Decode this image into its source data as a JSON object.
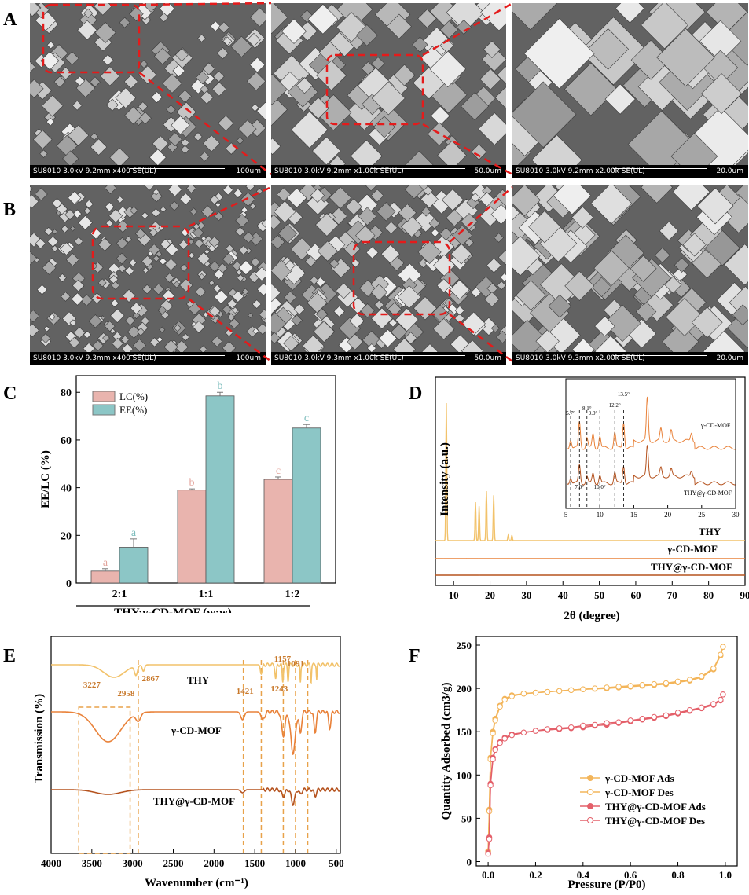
{
  "panel_labels": {
    "A": "A",
    "B": "B",
    "C": "C",
    "D": "D",
    "E": "E",
    "F": "F"
  },
  "sem": {
    "row_a": [
      {
        "meta": "SU8010 3.0kV 9.2mm x400 SE(UL)",
        "scale": "100um"
      },
      {
        "meta": "SU8010 3.0kV 9.2mm x1.00k SE(UL)",
        "scale": "50.0um"
      },
      {
        "meta": "SU8010 3.0kV 9.2mm x2.00k SE(UL)",
        "scale": "20.0um"
      }
    ],
    "row_b": [
      {
        "meta": "SU8010 3.0kV 9.3mm x400 SE(UL)",
        "scale": "100um"
      },
      {
        "meta": "SU8010 3.0kV 9.3mm x1.00k SE(UL)",
        "scale": "50.0um"
      },
      {
        "meta": "SU8010 3.0kV 9.3mm x2.00k SE(UL)",
        "scale": "20.0um"
      }
    ]
  },
  "colors": {
    "lc": "#e9b4ae",
    "ee": "#8cc6c6",
    "thy": "#f2c26a",
    "mof": "#e9823a",
    "thymof": "#b5531f",
    "ads_mof": "#f3b55a",
    "ads_thymof": "#e4606a",
    "dash_red": "#e41b1b",
    "dash_orange": "#e8a24a"
  },
  "chart_data": [
    {
      "panel": "C",
      "type": "bar",
      "categories": [
        "2:1",
        "1:1",
        "1:2"
      ],
      "series": [
        {
          "name": "LC(%)",
          "values": [
            5,
            39,
            43.5
          ],
          "errors": [
            1,
            0.5,
            1
          ],
          "letters": [
            "a",
            "b",
            "c"
          ]
        },
        {
          "name": "EE(%)",
          "values": [
            15,
            78.5,
            65
          ],
          "errors": [
            3.5,
            1.5,
            1.5
          ],
          "letters": [
            "a",
            "b",
            "c"
          ]
        }
      ],
      "xlabel": "THY:γ-CD-MOF (w:w)",
      "ylabel": "EE/LC (%)",
      "ylim": [
        0,
        87
      ],
      "yticks": [
        "0",
        "20",
        "40",
        "60",
        "80"
      ],
      "legend": "top-left"
    },
    {
      "panel": "D",
      "type": "line",
      "xlabel": "2θ (degree)",
      "ylabel": "Intensity (a.u.)",
      "xlim": [
        5,
        90
      ],
      "xticks": [
        "10",
        "20",
        "30",
        "40",
        "50",
        "60",
        "70",
        "80",
        "90"
      ],
      "series": [
        {
          "name": "THY",
          "peaks": [
            [
              8,
              100
            ],
            [
              16,
              28
            ],
            [
              17,
              25
            ],
            [
              19,
              36
            ],
            [
              21,
              33
            ],
            [
              25,
              4
            ],
            [
              26,
              4
            ]
          ]
        },
        {
          "name": "γ-CD-MOF",
          "peaks": [
            [
              5.7,
              2
            ],
            [
              7.0,
              2
            ],
            [
              13.5,
              1
            ],
            [
              17,
              3
            ]
          ]
        },
        {
          "name": "THY@γ-CD-MOF",
          "peaks": [
            [
              7.0,
              1
            ],
            [
              17,
              2
            ]
          ]
        }
      ],
      "inset": {
        "xlim": [
          5,
          30
        ],
        "xticks": [
          "5",
          "10",
          "15",
          "20",
          "25",
          "30"
        ],
        "series_labels": [
          "γ-CD-MOF",
          "THY@γ-CD-MOF"
        ],
        "annotations": [
          "5.7°",
          "8.1°",
          "9.0°",
          "12.2°",
          "13.5°",
          "7.0°",
          "10.0°"
        ]
      }
    },
    {
      "panel": "E",
      "type": "line",
      "xlabel": "Wavenumber (cm⁻¹)",
      "ylabel": "Transmission (%)",
      "xlim": [
        4000,
        450
      ],
      "xticks": [
        "4000",
        "3500",
        "3000",
        "2500",
        "2000",
        "1500",
        "1000",
        "500"
      ],
      "series": [
        {
          "name": "THY",
          "bands": [
            3227,
            2958,
            2867,
            1421,
            1243,
            1157,
            1091
          ]
        },
        {
          "name": "γ-CD-MOF",
          "bands": [
            3300,
            2930,
            1650,
            1400,
            1150,
            1030
          ]
        },
        {
          "name": "THY@γ-CD-MOF",
          "bands": [
            3300,
            1030
          ]
        }
      ],
      "annotations": [
        "3227",
        "2958",
        "2867",
        "1421",
        "1243",
        "1157",
        "1091"
      ],
      "dashed_lines_x": [
        3660,
        3030,
        2930,
        1640,
        1420,
        1150,
        1000,
        850
      ]
    },
    {
      "panel": "F",
      "type": "line",
      "xlabel": "Pressure (P/P0)",
      "ylabel": "Quantity Adsorbed (cm3/g)",
      "xlim": [
        -0.05,
        1.05
      ],
      "ylim": [
        -5,
        260
      ],
      "xticks": [
        "0.0",
        "0.2",
        "0.4",
        "0.6",
        "0.8",
        "1.0"
      ],
      "yticks": [
        "0",
        "50",
        "100",
        "150",
        "200",
        "250"
      ],
      "x": [
        0.0,
        0.005,
        0.01,
        0.02,
        0.03,
        0.05,
        0.07,
        0.1,
        0.15,
        0.2,
        0.25,
        0.3,
        0.35,
        0.4,
        0.45,
        0.5,
        0.55,
        0.6,
        0.65,
        0.7,
        0.75,
        0.8,
        0.85,
        0.9,
        0.95,
        0.98,
        0.99
      ],
      "series": [
        {
          "name": "γ-CD-MOF Ads",
          "values": [
            12,
            60,
            120,
            150,
            165,
            180,
            188,
            192,
            194,
            195,
            196,
            197,
            198,
            199,
            199.5,
            200,
            201,
            202,
            203,
            204,
            205,
            207,
            209,
            213,
            222,
            238,
            248
          ]
        },
        {
          "name": "γ-CD-MOF Des",
          "values": [
            10,
            58,
            118,
            148,
            163,
            179,
            187,
            191,
            194,
            195,
            196,
            197,
            198,
            199,
            200,
            201,
            202,
            203,
            204,
            205,
            206,
            208,
            210,
            214,
            223,
            239,
            248
          ]
        },
        {
          "name": "THY@γ-CD-MOF Ads",
          "values": [
            10,
            28,
            90,
            120,
            130,
            138,
            143,
            147,
            149,
            151,
            152,
            153,
            154,
            155,
            157,
            158,
            160,
            162,
            164,
            166,
            168,
            171,
            174,
            177,
            181,
            186,
            193
          ]
        },
        {
          "name": "THY@γ-CD-MOF Des",
          "values": [
            9,
            26,
            88,
            118,
            129,
            137,
            142,
            146,
            149,
            151,
            153,
            154,
            155,
            157,
            158,
            160,
            161,
            163,
            165,
            167,
            169,
            172,
            175,
            178,
            182,
            187,
            193
          ]
        }
      ],
      "legend": "bottom-right"
    }
  ]
}
